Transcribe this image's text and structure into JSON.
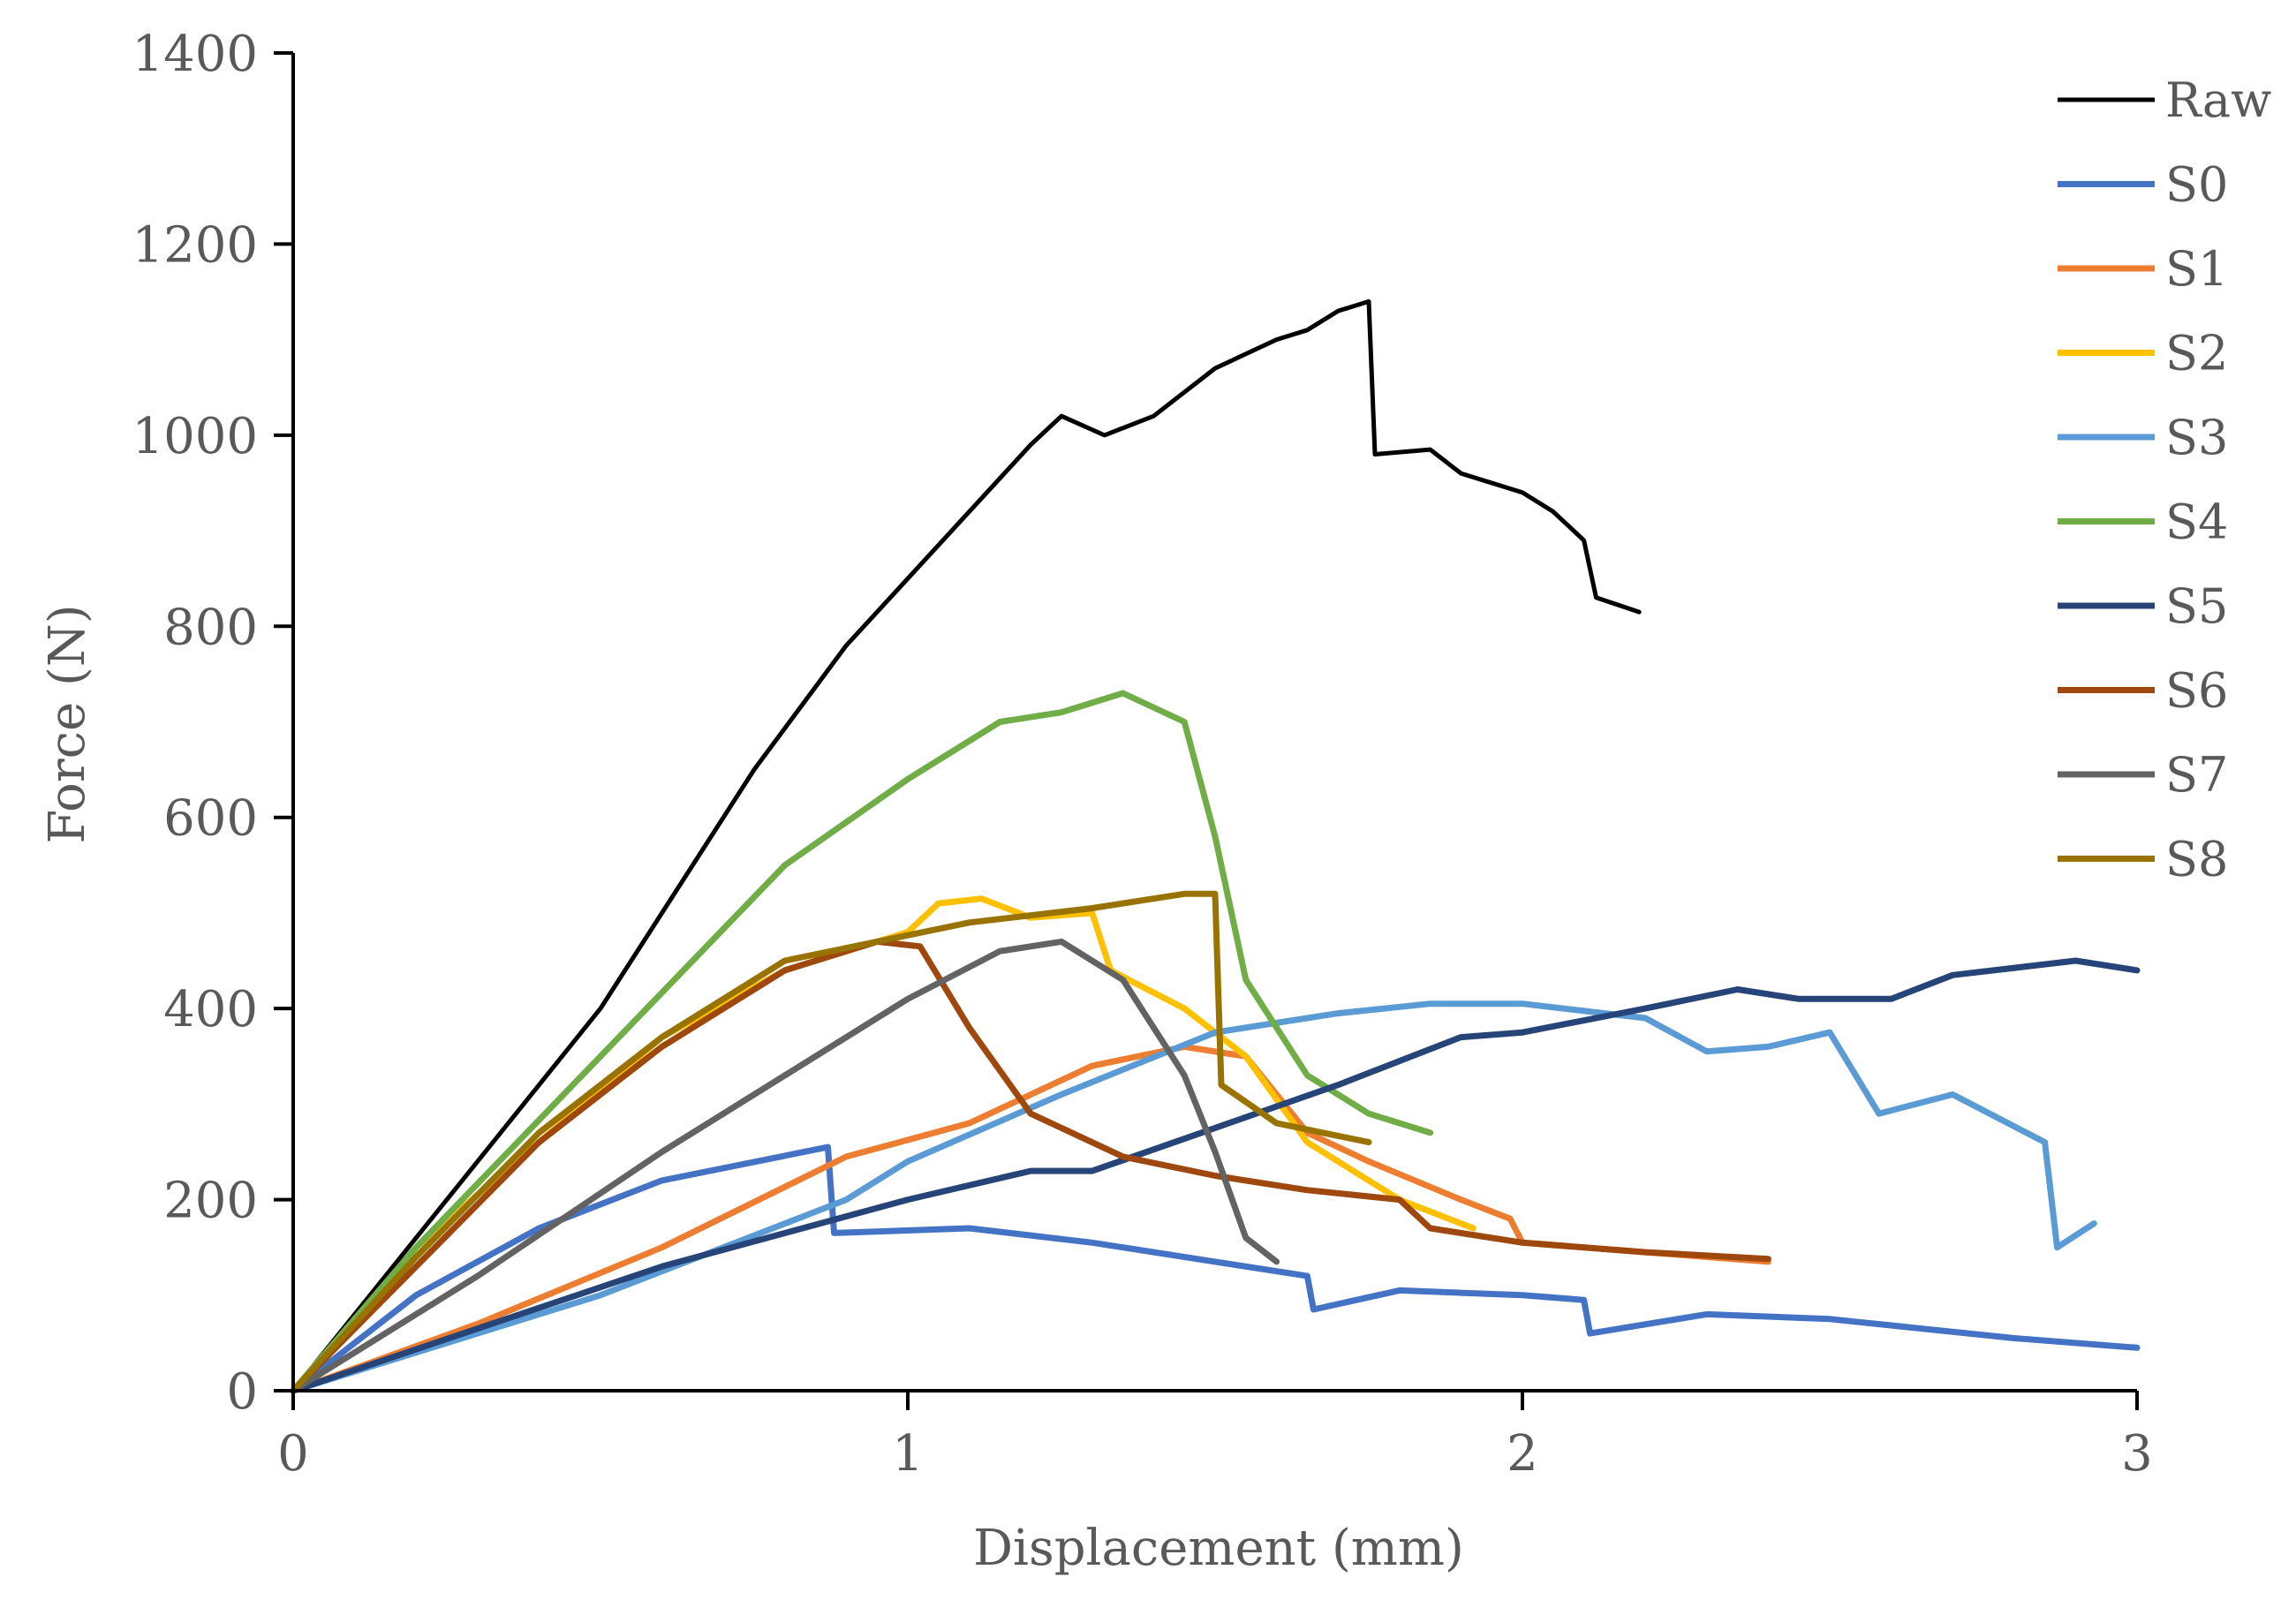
{
  "chart_data": {
    "type": "line",
    "title": "",
    "xlabel": "Displacement (mm)",
    "ylabel": "Force (N)",
    "xlim": [
      0,
      3
    ],
    "ylim": [
      0,
      1400
    ],
    "xticks": [
      0,
      1,
      2,
      3
    ],
    "yticks": [
      0,
      200,
      400,
      600,
      800,
      1000,
      1200,
      1400
    ],
    "grid": false,
    "legend_position": "right",
    "series": [
      {
        "name": "Raw",
        "color": "#000000",
        "points": [
          [
            0,
            0
          ],
          [
            0.25,
            200
          ],
          [
            0.5,
            400
          ],
          [
            0.75,
            650
          ],
          [
            0.9,
            780
          ],
          [
            1.0,
            850
          ],
          [
            1.1,
            920
          ],
          [
            1.2,
            990
          ],
          [
            1.25,
            1020
          ],
          [
            1.32,
            1000
          ],
          [
            1.4,
            1020
          ],
          [
            1.5,
            1070
          ],
          [
            1.6,
            1100
          ],
          [
            1.65,
            1110
          ],
          [
            1.7,
            1130
          ],
          [
            1.75,
            1140
          ],
          [
            1.76,
            980
          ],
          [
            1.85,
            985
          ],
          [
            1.9,
            960
          ],
          [
            2.0,
            940
          ],
          [
            2.05,
            920
          ],
          [
            2.1,
            890
          ],
          [
            2.12,
            830
          ],
          [
            2.19,
            815
          ]
        ]
      },
      {
        "name": "S0",
        "color": "#4472C4",
        "points": [
          [
            0,
            0
          ],
          [
            0.2,
            100
          ],
          [
            0.4,
            170
          ],
          [
            0.6,
            220
          ],
          [
            0.87,
            255
          ],
          [
            0.88,
            165
          ],
          [
            1.1,
            170
          ],
          [
            1.3,
            155
          ],
          [
            1.5,
            135
          ],
          [
            1.65,
            120
          ],
          [
            1.66,
            85
          ],
          [
            1.8,
            105
          ],
          [
            2.0,
            100
          ],
          [
            2.1,
            95
          ],
          [
            2.11,
            60
          ],
          [
            2.3,
            80
          ],
          [
            2.5,
            75
          ],
          [
            2.8,
            55
          ],
          [
            3.0,
            45
          ]
        ]
      },
      {
        "name": "S1",
        "color": "#ED7D31",
        "points": [
          [
            0,
            0
          ],
          [
            0.3,
            70
          ],
          [
            0.6,
            150
          ],
          [
            0.9,
            245
          ],
          [
            1.1,
            280
          ],
          [
            1.3,
            340
          ],
          [
            1.45,
            360
          ],
          [
            1.55,
            350
          ],
          [
            1.65,
            270
          ],
          [
            1.75,
            240
          ],
          [
            1.9,
            200
          ],
          [
            1.98,
            180
          ],
          [
            2.0,
            155
          ],
          [
            2.2,
            145
          ],
          [
            2.4,
            135
          ]
        ]
      },
      {
        "name": "S2",
        "color": "#FFC000",
        "points": [
          [
            0,
            0
          ],
          [
            0.2,
            150
          ],
          [
            0.4,
            260
          ],
          [
            0.6,
            370
          ],
          [
            0.8,
            440
          ],
          [
            1.0,
            480
          ],
          [
            1.05,
            510
          ],
          [
            1.12,
            515
          ],
          [
            1.2,
            495
          ],
          [
            1.3,
            500
          ],
          [
            1.33,
            440
          ],
          [
            1.45,
            400
          ],
          [
            1.55,
            350
          ],
          [
            1.65,
            260
          ],
          [
            1.8,
            200
          ],
          [
            1.92,
            170
          ]
        ]
      },
      {
        "name": "S3",
        "color": "#5B9BD5",
        "points": [
          [
            0,
            0
          ],
          [
            0.5,
            100
          ],
          [
            0.9,
            200
          ],
          [
            1.0,
            240
          ],
          [
            1.25,
            310
          ],
          [
            1.5,
            375
          ],
          [
            1.7,
            395
          ],
          [
            1.85,
            405
          ],
          [
            2.0,
            405
          ],
          [
            2.2,
            390
          ],
          [
            2.3,
            355
          ],
          [
            2.4,
            360
          ],
          [
            2.5,
            375
          ],
          [
            2.58,
            290
          ],
          [
            2.7,
            310
          ],
          [
            2.85,
            260
          ],
          [
            2.87,
            150
          ],
          [
            2.93,
            175
          ]
        ]
      },
      {
        "name": "S4",
        "color": "#70AD47",
        "points": [
          [
            0,
            0
          ],
          [
            0.2,
            150
          ],
          [
            0.5,
            350
          ],
          [
            0.8,
            550
          ],
          [
            1.0,
            640
          ],
          [
            1.15,
            700
          ],
          [
            1.25,
            710
          ],
          [
            1.35,
            730
          ],
          [
            1.45,
            700
          ],
          [
            1.5,
            580
          ],
          [
            1.55,
            430
          ],
          [
            1.65,
            330
          ],
          [
            1.75,
            290
          ],
          [
            1.85,
            270
          ]
        ]
      },
      {
        "name": "S5",
        "color": "#264478",
        "points": [
          [
            0,
            0
          ],
          [
            0.6,
            130
          ],
          [
            1.0,
            200
          ],
          [
            1.2,
            230
          ],
          [
            1.3,
            230
          ],
          [
            1.5,
            275
          ],
          [
            1.7,
            320
          ],
          [
            1.9,
            370
          ],
          [
            2.0,
            375
          ],
          [
            2.2,
            400
          ],
          [
            2.35,
            420
          ],
          [
            2.45,
            410
          ],
          [
            2.6,
            410
          ],
          [
            2.7,
            435
          ],
          [
            2.9,
            450
          ],
          [
            3.0,
            440
          ]
        ]
      },
      {
        "name": "S6",
        "color": "#9E480E",
        "points": [
          [
            0,
            0
          ],
          [
            0.2,
            130
          ],
          [
            0.4,
            260
          ],
          [
            0.6,
            360
          ],
          [
            0.8,
            440
          ],
          [
            0.95,
            470
          ],
          [
            1.02,
            465
          ],
          [
            1.1,
            380
          ],
          [
            1.2,
            290
          ],
          [
            1.35,
            245
          ],
          [
            1.5,
            225
          ],
          [
            1.65,
            210
          ],
          [
            1.8,
            200
          ],
          [
            1.85,
            170
          ],
          [
            2.0,
            155
          ],
          [
            2.2,
            145
          ],
          [
            2.4,
            138
          ]
        ]
      },
      {
        "name": "S7",
        "color": "#636363",
        "points": [
          [
            0,
            0
          ],
          [
            0.3,
            120
          ],
          [
            0.6,
            250
          ],
          [
            0.8,
            330
          ],
          [
            1.0,
            410
          ],
          [
            1.15,
            460
          ],
          [
            1.25,
            470
          ],
          [
            1.35,
            430
          ],
          [
            1.45,
            330
          ],
          [
            1.5,
            250
          ],
          [
            1.55,
            160
          ],
          [
            1.6,
            135
          ]
        ]
      },
      {
        "name": "S8",
        "color": "#997300",
        "points": [
          [
            0,
            0
          ],
          [
            0.2,
            140
          ],
          [
            0.4,
            270
          ],
          [
            0.6,
            370
          ],
          [
            0.8,
            450
          ],
          [
            0.95,
            470
          ],
          [
            1.1,
            490
          ],
          [
            1.3,
            505
          ],
          [
            1.45,
            520
          ],
          [
            1.5,
            520
          ],
          [
            1.51,
            320
          ],
          [
            1.6,
            280
          ],
          [
            1.75,
            260
          ]
        ]
      }
    ]
  }
}
